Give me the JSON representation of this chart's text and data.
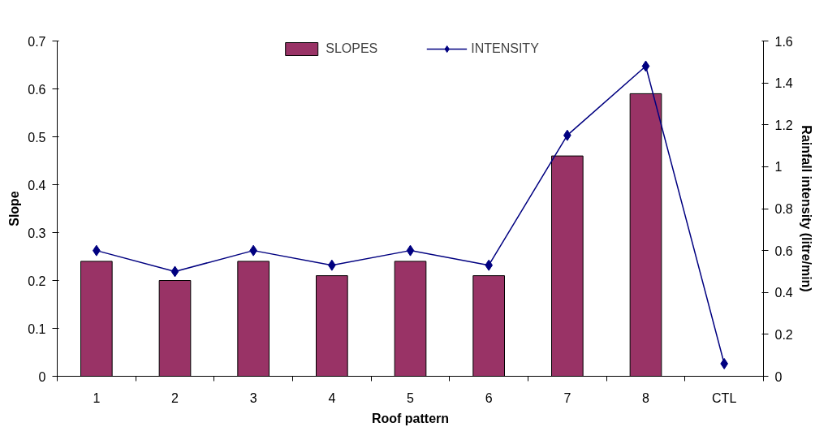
{
  "chart_data": {
    "type": "bar",
    "xlabel": "Roof pattern",
    "ylabel": "Slope",
    "y2label": "Rainfall intensity (litre/min)",
    "categories": [
      "1",
      "2",
      "3",
      "4",
      "5",
      "6",
      "7",
      "8",
      "CTL"
    ],
    "series": [
      {
        "name": "SLOPES",
        "color": "#993366",
        "values": [
          0.24,
          0.2,
          0.24,
          0.21,
          0.24,
          0.21,
          0.46,
          0.59,
          null
        ]
      },
      {
        "name": "INTENSITY",
        "type": "line",
        "axis": "y2",
        "color": "#000080",
        "marker": "diamond",
        "values": [
          0.6,
          0.5,
          0.6,
          0.53,
          0.6,
          0.53,
          1.15,
          1.48,
          0.06
        ]
      }
    ],
    "ylim": [
      0,
      0.7
    ],
    "yticks": [
      0,
      0.1,
      0.2,
      0.3,
      0.4,
      0.5,
      0.6,
      0.7
    ],
    "y2lim": [
      0,
      1.6
    ],
    "y2ticks": [
      0,
      0.2,
      0.4,
      0.6,
      0.8,
      1,
      1.2,
      1.4,
      1.6
    ],
    "legend": "top",
    "grid": false
  }
}
